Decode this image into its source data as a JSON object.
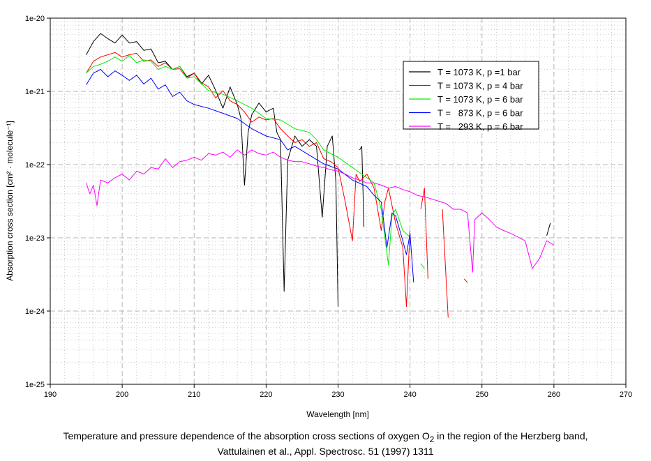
{
  "chart_data": {
    "type": "line",
    "y_scale": "log",
    "y_values_are_log10": true,
    "xlabel": "Wavelength [nm]",
    "ylabel": "Absorption cross section [cm² · molecule⁻¹]",
    "xlim": [
      190,
      270
    ],
    "ylim_log10": [
      -25,
      -20
    ],
    "x_ticks": [
      "190",
      "200",
      "210",
      "220",
      "230",
      "240",
      "250",
      "260",
      "270"
    ],
    "y_ticks": [
      "1e-25",
      "1e-24",
      "1e-23",
      "1e-22",
      "1e-21",
      "1e-20"
    ],
    "grid": true,
    "legend_position": "top-right",
    "series": [
      {
        "name": "T = 1073 K, p =1 bar",
        "color": "#000000",
        "points": [
          [
            195,
            -20.5
          ],
          [
            196,
            -20.32
          ],
          [
            197,
            -20.21
          ],
          [
            198,
            -20.28
          ],
          [
            199,
            -20.34
          ],
          [
            200,
            -20.23
          ],
          [
            201,
            -20.34
          ],
          [
            202,
            -20.32
          ],
          [
            203,
            -20.44
          ],
          [
            204,
            -20.42
          ],
          [
            205,
            -20.61
          ],
          [
            206,
            -20.59
          ],
          [
            207,
            -20.7
          ],
          [
            208,
            -20.66
          ],
          [
            209,
            -20.8
          ],
          [
            210,
            -20.75
          ],
          [
            211,
            -20.9
          ],
          [
            212,
            -20.78
          ],
          [
            213,
            -20.99
          ],
          [
            214,
            -21.23
          ],
          [
            215,
            -20.94
          ],
          [
            216,
            -21.18
          ],
          [
            216.5,
            -21.37
          ],
          [
            217,
            -22.28
          ],
          [
            217.5,
            -21.56
          ],
          [
            218,
            -21.32
          ],
          [
            219,
            -21.16
          ],
          [
            220,
            -21.28
          ],
          [
            221,
            -21.23
          ],
          [
            221.5,
            -21.56
          ],
          [
            222,
            -21.66
          ],
          [
            222.5,
            -23.73
          ],
          [
            223,
            -21.94
          ],
          [
            224,
            -21.61
          ],
          [
            225,
            -21.75
          ],
          [
            226,
            -21.66
          ],
          [
            227,
            -21.75
          ],
          [
            227.8,
            -22.72
          ],
          [
            228.5,
            -21.75
          ],
          [
            229.2,
            -21.61
          ],
          [
            229.7,
            -22.23
          ],
          [
            230,
            -23.94
          ],
          null,
          [
            233,
            -21.8
          ],
          [
            233.3,
            -21.75
          ],
          [
            233.6,
            -22.85
          ],
          null,
          [
            259,
            -22.97
          ],
          [
            259.5,
            -22.8
          ]
        ]
      },
      {
        "name": "T = 1073 K, p = 4 bar",
        "color": "#ff0000",
        "points": [
          [
            195,
            -20.75
          ],
          [
            196,
            -20.59
          ],
          [
            197,
            -20.53
          ],
          [
            198,
            -20.5
          ],
          [
            199,
            -20.47
          ],
          [
            200,
            -20.53
          ],
          [
            201,
            -20.5
          ],
          [
            202,
            -20.48
          ],
          [
            203,
            -20.59
          ],
          [
            204,
            -20.57
          ],
          [
            205,
            -20.66
          ],
          [
            206,
            -20.61
          ],
          [
            207,
            -20.7
          ],
          [
            208,
            -20.69
          ],
          [
            209,
            -20.82
          ],
          [
            210,
            -20.75
          ],
          [
            211,
            -20.88
          ],
          [
            212,
            -20.94
          ],
          [
            213,
            -21.09
          ],
          [
            214,
            -20.99
          ],
          [
            215,
            -21.13
          ],
          [
            216,
            -21.18
          ],
          [
            217,
            -21.28
          ],
          [
            218,
            -21.42
          ],
          [
            219,
            -21.35
          ],
          [
            220,
            -21.39
          ],
          [
            221,
            -21.37
          ],
          [
            222,
            -21.51
          ],
          [
            223,
            -21.61
          ],
          [
            224,
            -21.7
          ],
          [
            225,
            -21.66
          ],
          [
            226,
            -21.75
          ],
          [
            227,
            -21.7
          ],
          [
            228,
            -21.92
          ],
          [
            229,
            -21.96
          ],
          [
            230,
            -22.04
          ],
          [
            231,
            -22.51
          ],
          [
            232,
            -23.04
          ],
          [
            232.5,
            -22.13
          ],
          [
            233,
            -22.23
          ],
          [
            234,
            -22.13
          ],
          [
            235,
            -22.32
          ],
          [
            236,
            -22.9
          ],
          [
            236.5,
            -22.51
          ],
          [
            237,
            -22.32
          ],
          [
            238,
            -22.8
          ],
          [
            239,
            -23.13
          ],
          [
            239.5,
            -23.94
          ],
          [
            240,
            -22.9
          ],
          null,
          [
            241.5,
            -22.61
          ],
          [
            242,
            -22.32
          ],
          [
            242.5,
            -23.56
          ],
          null,
          [
            244.5,
            -22.61
          ],
          [
            245.3,
            -24.09
          ],
          null,
          [
            247.5,
            -23.56
          ],
          [
            248,
            -23.61
          ]
        ]
      },
      {
        "name": "T = 1073 K, p = 6 bar",
        "color": "#00ee00",
        "points": [
          [
            195,
            -20.75
          ],
          [
            196,
            -20.66
          ],
          [
            197,
            -20.63
          ],
          [
            198,
            -20.59
          ],
          [
            199,
            -20.53
          ],
          [
            200,
            -20.59
          ],
          [
            201,
            -20.51
          ],
          [
            202,
            -20.61
          ],
          [
            203,
            -20.57
          ],
          [
            204,
            -20.59
          ],
          [
            205,
            -20.7
          ],
          [
            206,
            -20.66
          ],
          [
            207,
            -20.7
          ],
          [
            208,
            -20.66
          ],
          [
            209,
            -20.82
          ],
          [
            210,
            -20.8
          ],
          [
            212,
            -20.99
          ],
          [
            214,
            -21.04
          ],
          [
            216,
            -21.13
          ],
          [
            218,
            -21.23
          ],
          [
            220,
            -21.37
          ],
          [
            222,
            -21.39
          ],
          [
            224,
            -21.51
          ],
          [
            226,
            -21.56
          ],
          [
            227,
            -21.66
          ],
          [
            228,
            -21.8
          ],
          [
            230,
            -21.9
          ],
          [
            232,
            -22.04
          ],
          [
            234,
            -22.18
          ],
          [
            235,
            -22.25
          ],
          [
            236,
            -22.61
          ],
          [
            237,
            -23.37
          ],
          [
            237.5,
            -22.7
          ],
          [
            238,
            -22.61
          ],
          [
            239,
            -22.9
          ],
          [
            240,
            -22.99
          ],
          null,
          [
            241.5,
            -23.35
          ],
          [
            242,
            -23.42
          ]
        ]
      },
      {
        "name": "T =   873 K, p = 6 bar",
        "color": "#0000ff",
        "points": [
          [
            195,
            -20.91
          ],
          [
            196,
            -20.75
          ],
          [
            197,
            -20.7
          ],
          [
            198,
            -20.8
          ],
          [
            199,
            -20.72
          ],
          [
            200,
            -20.78
          ],
          [
            201,
            -20.85
          ],
          [
            202,
            -20.78
          ],
          [
            203,
            -20.9
          ],
          [
            204,
            -20.82
          ],
          [
            205,
            -20.97
          ],
          [
            206,
            -20.91
          ],
          [
            207,
            -21.07
          ],
          [
            208,
            -21.01
          ],
          [
            209,
            -21.13
          ],
          [
            210,
            -21.18
          ],
          [
            212,
            -21.23
          ],
          [
            214,
            -21.3
          ],
          [
            216,
            -21.37
          ],
          [
            218,
            -21.51
          ],
          [
            220,
            -21.61
          ],
          [
            222,
            -21.66
          ],
          [
            223,
            -21.8
          ],
          [
            224,
            -21.75
          ],
          [
            226,
            -21.87
          ],
          [
            228,
            -21.99
          ],
          [
            230,
            -22.06
          ],
          [
            232,
            -22.21
          ],
          [
            234,
            -22.3
          ],
          [
            235,
            -22.42
          ],
          [
            236,
            -22.51
          ],
          [
            236.8,
            -23.13
          ],
          [
            237.5,
            -22.66
          ],
          [
            238,
            -22.7
          ],
          [
            239,
            -23.04
          ],
          [
            239.5,
            -23.23
          ],
          [
            240,
            -22.94
          ],
          [
            240.5,
            -23.61
          ]
        ]
      },
      {
        "name": "T =   293 K, p = 6 bar",
        "color": "#ff00ff",
        "points": [
          [
            195,
            -22.25
          ],
          [
            195.5,
            -22.4
          ],
          [
            196,
            -22.28
          ],
          [
            196.5,
            -22.56
          ],
          [
            197,
            -22.21
          ],
          [
            198,
            -22.25
          ],
          [
            199,
            -22.18
          ],
          [
            200,
            -22.13
          ],
          [
            201,
            -22.21
          ],
          [
            202,
            -22.09
          ],
          [
            203,
            -22.13
          ],
          [
            204,
            -22.04
          ],
          [
            205,
            -22.06
          ],
          [
            206,
            -21.92
          ],
          [
            207,
            -22.04
          ],
          [
            208,
            -21.96
          ],
          [
            209,
            -21.94
          ],
          [
            210,
            -21.9
          ],
          [
            211,
            -21.94
          ],
          [
            212,
            -21.85
          ],
          [
            213,
            -21.87
          ],
          [
            214,
            -21.83
          ],
          [
            215,
            -21.9
          ],
          [
            216,
            -21.8
          ],
          [
            217,
            -21.87
          ],
          [
            218,
            -21.8
          ],
          [
            219,
            -21.85
          ],
          [
            220,
            -21.87
          ],
          [
            221,
            -21.83
          ],
          [
            222,
            -21.9
          ],
          [
            223,
            -21.94
          ],
          [
            224,
            -21.96
          ],
          [
            225,
            -21.96
          ],
          [
            226,
            -21.99
          ],
          [
            227,
            -22.02
          ],
          [
            228,
            -22.04
          ],
          [
            229,
            -22.07
          ],
          [
            230,
            -22.09
          ],
          [
            231,
            -22.13
          ],
          [
            232,
            -22.18
          ],
          [
            233,
            -22.21
          ],
          [
            234,
            -22.25
          ],
          [
            235,
            -22.25
          ],
          [
            236,
            -22.28
          ],
          [
            237,
            -22.32
          ],
          [
            238,
            -22.3
          ],
          [
            239,
            -22.34
          ],
          [
            240,
            -22.37
          ],
          [
            241,
            -22.42
          ],
          [
            242,
            -22.44
          ],
          [
            243,
            -22.47
          ],
          [
            244,
            -22.5
          ],
          [
            245,
            -22.53
          ],
          [
            246,
            -22.61
          ],
          [
            247,
            -22.61
          ],
          [
            248,
            -22.66
          ],
          [
            248.7,
            -23.47
          ],
          [
            249,
            -22.75
          ],
          [
            250,
            -22.66
          ],
          [
            251,
            -22.75
          ],
          [
            252,
            -22.85
          ],
          [
            253,
            -22.9
          ],
          [
            254,
            -22.94
          ],
          [
            255,
            -22.99
          ],
          [
            256,
            -23.04
          ],
          [
            257,
            -23.42
          ],
          [
            258,
            -23.28
          ],
          [
            259,
            -23.04
          ],
          [
            260,
            -23.1
          ]
        ]
      }
    ]
  },
  "caption": {
    "line1_a": "Temperature and pressure dependence of the absorption cross sections of oxygen O",
    "line1_sub": "2",
    "line1_b": " in the region of the Herzberg band,",
    "line2": "Vattulainen et al., Appl. Spectrosc. 51 (1997) 1311"
  }
}
